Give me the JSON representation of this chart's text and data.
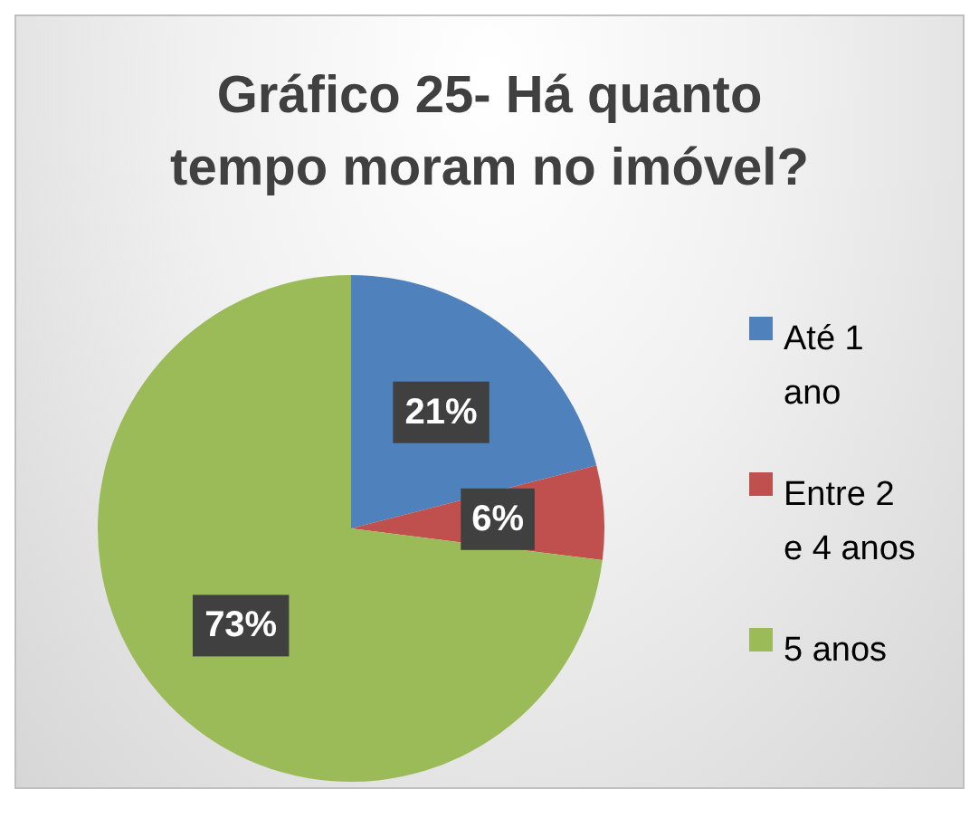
{
  "chart_data": {
    "type": "pie",
    "title": "Gráfico 25- Há quanto tempo moram no imóvel?",
    "categories": [
      "Até 1 ano",
      "Entre 2 e 4 anos",
      "5 anos"
    ],
    "values": [
      21,
      6,
      73
    ],
    "colors": [
      "#4f81bd",
      "#c0504d",
      "#9bbb59"
    ],
    "value_labels": [
      "21%",
      "6%",
      "73%"
    ],
    "legend": "right"
  }
}
